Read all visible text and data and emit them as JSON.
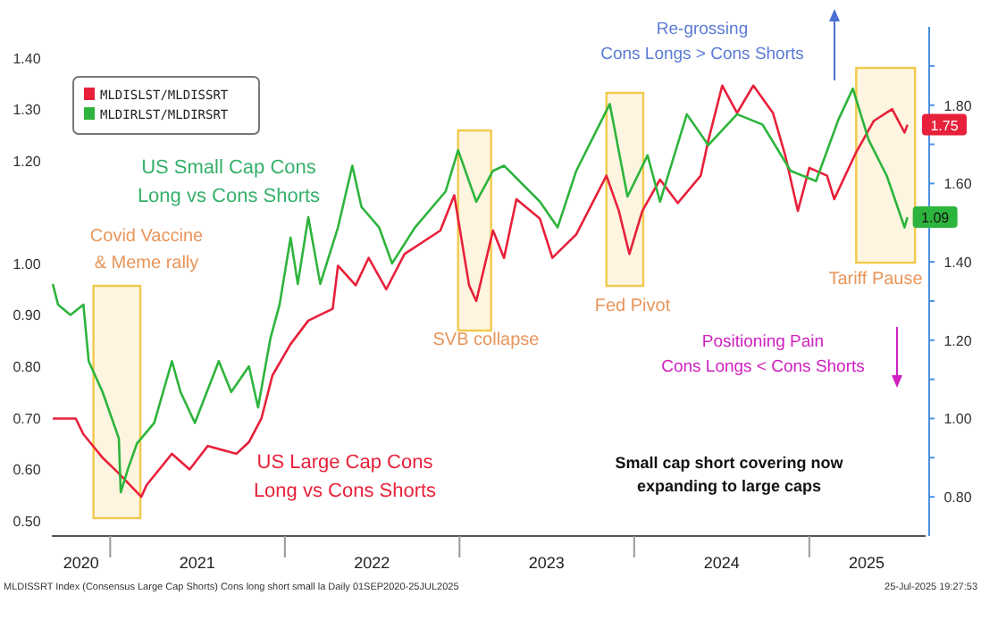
{
  "chart_data": {
    "type": "line",
    "legend": "top left",
    "grid": false,
    "line_style": "solid",
    "marker": "none",
    "xlim": [
      "2020-09-01",
      "2025-09-01"
    ],
    "xticks": [
      {
        "value": "2020-11-01",
        "label": "2020"
      },
      {
        "value": "2021-01-01",
        "label": null
      },
      {
        "value": "2021-07-02",
        "label": "2021"
      },
      {
        "value": "2022-01-01",
        "label": null
      },
      {
        "value": "2022-07-02",
        "label": "2022"
      },
      {
        "value": "2023-01-01",
        "label": null
      },
      {
        "value": "2023-07-02",
        "label": "2023"
      },
      {
        "value": "2024-01-01",
        "label": null
      },
      {
        "value": "2024-07-02",
        "label": "2024"
      },
      {
        "value": "2025-01-01",
        "label": null
      },
      {
        "value": "2025-05-01",
        "label": "2025"
      }
    ],
    "ylim": [
      0.47,
      1.46
    ],
    "yticks": [
      {
        "value": 0.5,
        "label": "0.50"
      },
      {
        "value": 0.6,
        "label": "0.60"
      },
      {
        "value": 0.7,
        "label": "0.70"
      },
      {
        "value": 0.8,
        "label": "0.80"
      },
      {
        "value": 0.9,
        "label": "0.90"
      },
      {
        "value": 1.0,
        "label": "1.00"
      },
      {
        "value": 1.2,
        "label": "1.20"
      },
      {
        "value": 1.3,
        "label": "1.30"
      },
      {
        "value": 1.4,
        "label": "1.40"
      }
    ],
    "y2lim": [
      0.7,
      2.0
    ],
    "y2ticks": [
      {
        "value": 0.8,
        "label": "0.80"
      },
      {
        "value": 0.9,
        "label": null
      },
      {
        "value": 1.0,
        "label": "1.00"
      },
      {
        "value": 1.1,
        "label": null
      },
      {
        "value": 1.2,
        "label": "1.20"
      },
      {
        "value": 1.3,
        "label": null
      },
      {
        "value": 1.4,
        "label": "1.40"
      },
      {
        "value": 1.5,
        "label": null
      },
      {
        "value": 1.6,
        "label": "1.60"
      },
      {
        "value": 1.7,
        "label": null
      },
      {
        "value": 1.8,
        "label": "1.80"
      },
      {
        "value": 1.9,
        "label": null
      }
    ],
    "series": [
      {
        "name": "MLDISLST/MLDISSRT",
        "color": "#e8203a",
        "axis": "y2",
        "x": [
          "2020-09-03",
          "2020-10-21",
          "2020-11-06",
          "2020-12-16",
          "2021-01-19",
          "2021-03-07",
          "2021-03-18",
          "2021-05-10",
          "2021-06-16",
          "2021-07-24",
          "2021-09-22",
          "2021-10-18",
          "2021-11-13",
          "2021-12-06",
          "2022-01-13",
          "2022-02-19",
          "2022-04-11",
          "2022-04-22",
          "2022-05-29",
          "2022-06-25",
          "2022-08-01",
          "2022-09-08",
          "2022-11-22",
          "2022-12-21",
          "2023-01-21",
          "2023-02-05",
          "2023-03-12",
          "2023-04-04",
          "2023-04-30",
          "2023-06-18",
          "2023-07-14",
          "2023-09-02",
          "2023-11-04",
          "2023-11-30",
          "2023-12-22",
          "2024-01-18",
          "2024-02-24",
          "2024-04-01",
          "2024-05-19",
          "2024-06-04",
          "2024-07-03",
          "2024-08-03",
          "2024-09-06",
          "2024-10-17",
          "2024-11-12",
          "2024-12-08",
          "2025-01-01",
          "2025-02-07",
          "2025-02-22",
          "2025-04-09",
          "2025-05-16",
          "2025-06-23",
          "2025-07-19",
          "2025-07-25"
        ],
        "values": [
          1.0,
          1.0,
          0.96,
          0.9,
          0.86,
          0.8,
          0.83,
          0.91,
          0.87,
          0.93,
          0.91,
          0.94,
          1.0,
          1.11,
          1.19,
          1.25,
          1.28,
          1.39,
          1.34,
          1.41,
          1.33,
          1.42,
          1.48,
          1.57,
          1.34,
          1.3,
          1.48,
          1.41,
          1.56,
          1.51,
          1.41,
          1.47,
          1.62,
          1.53,
          1.42,
          1.53,
          1.61,
          1.55,
          1.62,
          1.71,
          1.85,
          1.78,
          1.85,
          1.78,
          1.67,
          1.53,
          1.64,
          1.62,
          1.56,
          1.68,
          1.76,
          1.79,
          1.73,
          1.75
        ],
        "value_labels": [
          null,
          null,
          null,
          null,
          null,
          null,
          null,
          null,
          null,
          null,
          null,
          null,
          null,
          null,
          null,
          null,
          null,
          null,
          null,
          null,
          null,
          null,
          null,
          null,
          null,
          null,
          null,
          null,
          null,
          null,
          null,
          null,
          null,
          null,
          null,
          null,
          null,
          null,
          null,
          null,
          null,
          null,
          null,
          null,
          null,
          null,
          null,
          null,
          null,
          null,
          null,
          null,
          null,
          "1.75"
        ]
      },
      {
        "name": "MLDIRLST/MLDIRSRT",
        "color": "#2db43c",
        "axis": "y",
        "x": [
          "2020-09-03",
          "2020-09-14",
          "2020-10-10",
          "2020-11-06",
          "2020-11-17",
          "2020-12-16",
          "2021-01-19",
          "2021-01-23",
          "2021-02-07",
          "2021-02-26",
          "2021-04-03",
          "2021-05-10",
          "2021-05-28",
          "2021-06-27",
          "2021-08-16",
          "2021-09-11",
          "2021-10-18",
          "2021-11-06",
          "2021-12-02",
          "2021-12-21",
          "2022-01-13",
          "2022-01-28",
          "2022-02-19",
          "2022-03-16",
          "2022-04-22",
          "2022-05-22",
          "2022-06-10",
          "2022-07-17",
          "2022-08-13",
          "2022-09-30",
          "2022-12-03",
          "2022-12-29",
          "2023-02-05",
          "2023-03-12",
          "2023-04-04",
          "2023-06-18",
          "2023-07-25",
          "2023-09-02",
          "2023-11-11",
          "2023-12-18",
          "2024-01-29",
          "2024-02-24",
          "2024-04-20",
          "2024-06-04",
          "2024-08-03",
          "2024-09-25",
          "2024-11-23",
          "2025-01-15",
          "2025-03-03",
          "2025-04-02",
          "2025-05-05",
          "2025-06-12",
          "2025-07-19",
          "2025-07-25"
        ],
        "values": [
          0.96,
          0.92,
          0.9,
          0.92,
          0.81,
          0.75,
          0.66,
          0.555,
          0.6,
          0.65,
          0.69,
          0.81,
          0.75,
          0.69,
          0.81,
          0.75,
          0.8,
          0.72,
          0.855,
          0.92,
          1.05,
          0.96,
          1.09,
          0.96,
          1.07,
          1.19,
          1.11,
          1.07,
          1.0,
          1.07,
          1.14,
          1.22,
          1.12,
          1.18,
          1.19,
          1.12,
          1.07,
          1.18,
          1.31,
          1.13,
          1.21,
          1.12,
          1.29,
          1.23,
          1.29,
          1.27,
          1.18,
          1.16,
          1.28,
          1.34,
          1.24,
          1.17,
          1.07,
          1.09
        ],
        "value_labels": [
          null,
          null,
          null,
          null,
          null,
          null,
          null,
          null,
          null,
          null,
          null,
          null,
          null,
          null,
          null,
          null,
          null,
          null,
          null,
          null,
          null,
          null,
          null,
          null,
          null,
          null,
          null,
          null,
          null,
          null,
          null,
          null,
          null,
          null,
          null,
          null,
          null,
          null,
          null,
          null,
          null,
          null,
          null,
          null,
          null,
          null,
          null,
          null,
          null,
          null,
          null,
          null,
          null,
          "1.09"
        ]
      }
    ],
    "bands": [
      {
        "axis": "x",
        "from": "2020-11-27",
        "to": "2021-03-05",
        "label": "Covid Vaccine\n& Meme rally",
        "color": "#f2c94c"
      },
      {
        "axis": "x",
        "from": "2022-12-29",
        "to": "2023-03-08",
        "label": "SVB collapse",
        "color": "#f2c94c"
      },
      {
        "axis": "x",
        "from": "2023-11-04",
        "to": "2024-01-20",
        "label": "Fed Pivot",
        "color": "#f2c94c"
      },
      {
        "axis": "x",
        "from": "2025-04-09",
        "to": "2025-08-10",
        "label": "Tariff Pause",
        "color": "#f2c94c"
      }
    ],
    "annotations": [
      "US Small Cap Cons\nLong vs Cons Shorts",
      "US Large Cap Cons\nLong vs Cons Shorts",
      "Re-grossing\nCons Longs > Cons Shorts",
      "Positioning Pain\nCons Longs < Cons Shorts",
      "Small cap short covering now\nexpanding to large caps",
      "MLDISSRT Index (Consensus Large Cap Shorts) Cons long short small la Daily 01SEP2020-25JUL2025",
      "25-Jul-2025 19:27:53"
    ]
  }
}
